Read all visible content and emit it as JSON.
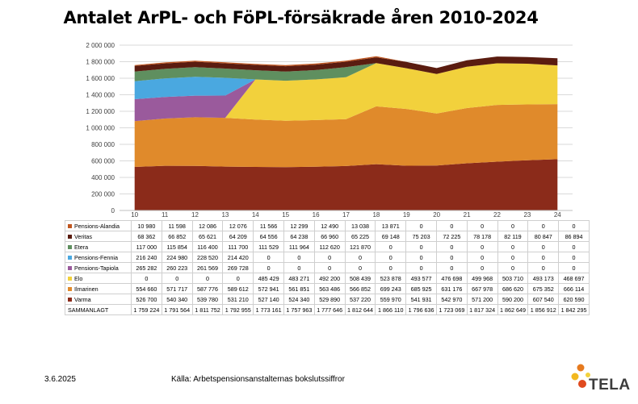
{
  "title": "Antalet ArPL- och FöPL-försäkrade åren 2010-2024",
  "footer": {
    "date": "3.6.2025",
    "source": "Källa: Arbetspensionsanstalternas bokslutssiffror",
    "logo_text": "TELA"
  },
  "colors": {
    "Varma": "#8b2b1a",
    "Ilmarinen": "#e08a2b",
    "Elo": "#f2d13c",
    "Pensions-Tapiola": "#9a5a9c",
    "Pensions-Fennia": "#4aa8e0",
    "Etera": "#5f8f5f",
    "Veritas": "#5a1c10",
    "Pensions-Alandia": "#c0561f",
    "grid": "#d9d9d9",
    "accent_logo": "#e67a1e"
  },
  "chart_data": {
    "type": "area",
    "stacked": true,
    "title": "Antalet ArPL- och FöPL-försäkrade åren 2010-2024",
    "x": [
      "10",
      "11",
      "12",
      "13",
      "14",
      "15",
      "16",
      "17",
      "18",
      "19",
      "20",
      "21",
      "22",
      "23",
      "24"
    ],
    "ylim": [
      0,
      2000000
    ],
    "yticks": [
      "0",
      "200 000",
      "400 000",
      "600 000",
      "800 000",
      "1 000 000",
      "1 200 000",
      "1 400 000",
      "1 600 000",
      "1 800 000",
      "2 000 000"
    ],
    "grid": true,
    "series": [
      {
        "name": "Varma",
        "values": [
          526700,
          540340,
          539780,
          531210,
          527140,
          524340,
          529890,
          537220,
          559970,
          541931,
          542970,
          571200,
          590200,
          607540,
          620590
        ]
      },
      {
        "name": "Ilmarinen",
        "values": [
          554660,
          571717,
          587776,
          589612,
          572941,
          561851,
          563486,
          566852,
          699243,
          685925,
          631176,
          667978,
          686620,
          675352,
          666114
        ]
      },
      {
        "name": "Elo",
        "values": [
          0,
          0,
          0,
          0,
          485429,
          483271,
          492200,
          508439,
          523878,
          493577,
          476698,
          499968,
          503710,
          493173,
          468697
        ]
      },
      {
        "name": "Pensions-Tapiola",
        "values": [
          265282,
          260223,
          261569,
          269728,
          0,
          0,
          0,
          0,
          0,
          0,
          0,
          0,
          0,
          0,
          0
        ]
      },
      {
        "name": "Pensions-Fennia",
        "values": [
          216240,
          224980,
          228520,
          214420,
          0,
          0,
          0,
          0,
          0,
          0,
          0,
          0,
          0,
          0,
          0
        ]
      },
      {
        "name": "Etera",
        "values": [
          117000,
          115854,
          116400,
          111700,
          111529,
          111964,
          112620,
          121870,
          0,
          0,
          0,
          0,
          0,
          0,
          0
        ]
      },
      {
        "name": "Veritas",
        "values": [
          68362,
          66852,
          65621,
          64209,
          64556,
          64238,
          66960,
          65225,
          69148,
          75203,
          72225,
          78178,
          82119,
          80847,
          86894
        ]
      },
      {
        "name": "Pensions-Alandia",
        "values": [
          10980,
          11598,
          12086,
          12076,
          11566,
          12299,
          12490,
          13038,
          13871,
          0,
          0,
          0,
          0,
          0,
          0
        ]
      }
    ],
    "table": {
      "rows": [
        {
          "name": "Pensions-Alandia",
          "cells": [
            "10 980",
            "11 598",
            "12 086",
            "12 076",
            "11 566",
            "12 299",
            "12 490",
            "13 038",
            "13 871",
            "0",
            "0",
            "0",
            "0",
            "0",
            "0"
          ]
        },
        {
          "name": "Veritas",
          "cells": [
            "68 362",
            "66 852",
            "65 621",
            "64 209",
            "64 556",
            "64 238",
            "66 960",
            "65 225",
            "69 148",
            "75 203",
            "72 225",
            "78 178",
            "82 119",
            "80 847",
            "86 894"
          ]
        },
        {
          "name": "Etera",
          "cells": [
            "117 000",
            "115 854",
            "116 400",
            "111 700",
            "111 529",
            "111 964",
            "112 620",
            "121 870",
            "0",
            "0",
            "0",
            "0",
            "0",
            "0",
            "0"
          ]
        },
        {
          "name": "Pensions-Fennia",
          "cells": [
            "216 240",
            "224 980",
            "228 520",
            "214 420",
            "0",
            "0",
            "0",
            "0",
            "0",
            "0",
            "0",
            "0",
            "0",
            "0",
            "0"
          ]
        },
        {
          "name": "Pensions-Tapiola",
          "cells": [
            "265 282",
            "260 223",
            "261 569",
            "269 728",
            "0",
            "0",
            "0",
            "0",
            "0",
            "0",
            "0",
            "0",
            "0",
            "0",
            "0"
          ]
        },
        {
          "name": "Elo",
          "cells": [
            "0",
            "0",
            "0",
            "0",
            "485 429",
            "483 271",
            "492 200",
            "508 439",
            "523 878",
            "493 577",
            "476 698",
            "499 968",
            "503 710",
            "493 173",
            "468 697"
          ]
        },
        {
          "name": "Ilmarinen",
          "cells": [
            "554 660",
            "571 717",
            "587 776",
            "589 612",
            "572 941",
            "561 851",
            "563 486",
            "566 852",
            "699 243",
            "685 925",
            "631 176",
            "667 978",
            "686 620",
            "675 352",
            "666 114"
          ]
        },
        {
          "name": "Varma",
          "cells": [
            "526 700",
            "540 340",
            "539 780",
            "531 210",
            "527 140",
            "524 340",
            "529 890",
            "537 220",
            "559 970",
            "541 931",
            "542 970",
            "571 200",
            "590 200",
            "607 540",
            "620 590"
          ]
        },
        {
          "name": "SAMMANLAGT",
          "cells": [
            "1 759 224",
            "1 791 564",
            "1 811 752",
            "1 792 955",
            "1 773 161",
            "1 757 963",
            "1 777 646",
            "1 812 644",
            "1 866 110",
            "1 796 636",
            "1 723 069",
            "1 817 324",
            "1 862 649",
            "1 856 912",
            "1 842 295"
          ]
        }
      ]
    }
  }
}
